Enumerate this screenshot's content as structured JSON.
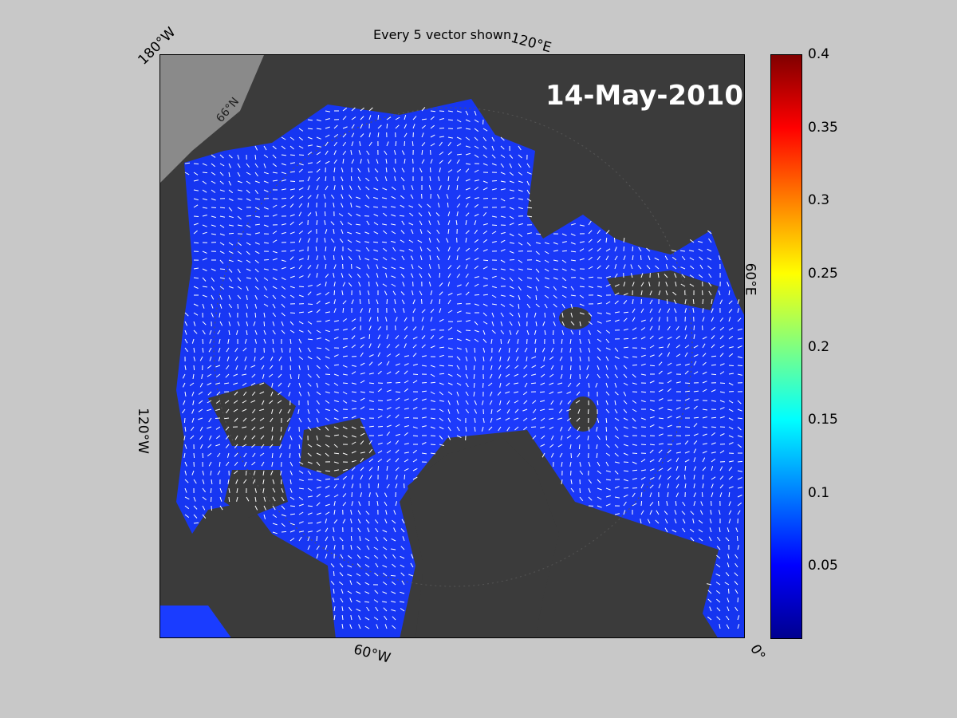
{
  "figure": {
    "title": "Every 5 vector shown",
    "date_label": "14-May-2010",
    "coord_labels": {
      "lon_180w": "180°W",
      "lon_120e": "120°E",
      "lon_60e": "60°E",
      "lon_120w": "120°W",
      "lon_60w": "60°W",
      "lon_0": "0°",
      "lat_66n": "66°N"
    },
    "colorbar": {
      "ticks": [
        "0.4",
        "0.35",
        "0.3",
        "0.25",
        "0.2",
        "0.15",
        "0.1",
        "0.05"
      ],
      "tick_values": [
        0.4,
        0.35,
        0.3,
        0.25,
        0.2,
        0.15,
        0.1,
        0.05
      ],
      "range": [
        0,
        0.4
      ],
      "colormap": "jet"
    },
    "colors": {
      "background": "#c8c8c8",
      "land": "#3b3b3b",
      "ice_ocean": "#1a3cff",
      "vectors": "#ffffff"
    }
  }
}
